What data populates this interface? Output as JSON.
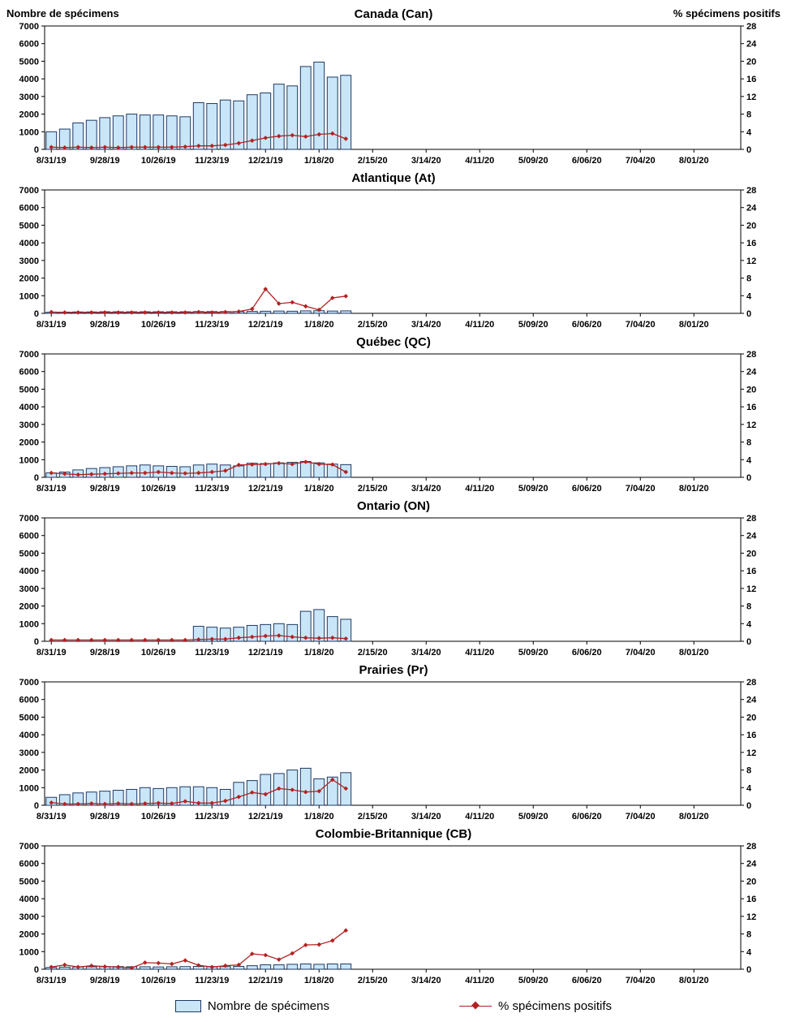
{
  "left_axis_title": "Nombre de spécimens",
  "right_axis_title": "% spécimens positifs",
  "legend": {
    "bars": "Nombre de spécimens",
    "line": "% spécimens positifs"
  },
  "colors": {
    "bar_fill": "#C9E6F8",
    "bar_border": "#1F3864",
    "line": "#B22222"
  },
  "axes": {
    "left_ticks": [
      0,
      1000,
      2000,
      3000,
      4000,
      5000,
      6000,
      7000
    ],
    "left_max": 7000,
    "right_ticks": [
      0,
      4,
      8,
      12,
      16,
      20,
      24,
      28
    ],
    "right_max": 28,
    "x_tick_labels": [
      "8/31/19",
      "9/28/19",
      "10/26/19",
      "11/23/19",
      "12/21/19",
      "1/18/20",
      "2/15/20",
      "3/14/20",
      "4/11/20",
      "5/09/20",
      "6/06/20",
      "7/04/20",
      "8/01/20"
    ],
    "x_tick_interval_weeks": 4,
    "weeks_total": 52
  },
  "chart_data": [
    {
      "type": "combo",
      "title": "Canada (Can)",
      "bars_series": "Nombre de spécimens",
      "line_series": "% spécimens positifs",
      "x_weekly_start": "8/31/19",
      "bars": [
        1000,
        1150,
        1500,
        1650,
        1800,
        1900,
        2000,
        1950,
        1950,
        1900,
        1850,
        2650,
        2600,
        2800,
        2750,
        3100,
        3200,
        3700,
        3600,
        4700,
        4950,
        4100,
        4200
      ],
      "line": [
        0.5,
        0.4,
        0.5,
        0.4,
        0.5,
        0.4,
        0.5,
        0.5,
        0.5,
        0.5,
        0.6,
        0.8,
        0.8,
        1.0,
        1.4,
        2.0,
        2.6,
        3.0,
        3.2,
        2.9,
        3.4,
        3.6,
        2.4
      ]
    },
    {
      "type": "combo",
      "title": "Atlantique (At)",
      "bars_series": "Nombre de spécimens",
      "line_series": "% spécimens positifs",
      "x_weekly_start": "8/31/19",
      "bars": [
        60,
        70,
        80,
        80,
        90,
        90,
        90,
        90,
        90,
        90,
        90,
        100,
        100,
        100,
        100,
        110,
        120,
        130,
        120,
        140,
        150,
        130,
        140
      ],
      "line": [
        0.3,
        0.2,
        0.2,
        0.2,
        0.2,
        0.2,
        0.2,
        0.2,
        0.2,
        0.2,
        0.2,
        0.3,
        0.2,
        0.3,
        0.4,
        1.0,
        5.5,
        2.2,
        2.5,
        1.6,
        0.8,
        3.5,
        3.9
      ]
    },
    {
      "type": "combo",
      "title": "Québec (QC)",
      "bars_series": "Nombre de spécimens",
      "line_series": "% spécimens positifs",
      "x_weekly_start": "8/31/19",
      "bars": [
        250,
        300,
        420,
        500,
        550,
        600,
        650,
        700,
        650,
        620,
        600,
        700,
        750,
        700,
        650,
        800,
        780,
        820,
        850,
        900,
        820,
        750,
        720
      ],
      "line": [
        1.0,
        0.8,
        0.6,
        0.7,
        0.8,
        0.9,
        1.0,
        1.0,
        1.2,
        1.0,
        0.9,
        1.0,
        1.2,
        1.5,
        2.8,
        2.9,
        3.0,
        3.2,
        3.0,
        3.5,
        3.0,
        2.9,
        1.2
      ]
    },
    {
      "type": "combo",
      "title": "Ontario (ON)",
      "bars_series": "Nombre de spécimens",
      "line_series": "% spécimens positifs",
      "x_weekly_start": "8/31/19",
      "bars": [
        0,
        0,
        0,
        0,
        0,
        0,
        0,
        0,
        0,
        0,
        0,
        850,
        800,
        750,
        800,
        900,
        950,
        1000,
        950,
        1700,
        1800,
        1400,
        1250
      ],
      "line": [
        0.3,
        0.3,
        0.3,
        0.3,
        0.3,
        0.3,
        0.3,
        0.3,
        0.3,
        0.3,
        0.3,
        0.4,
        0.5,
        0.5,
        0.8,
        1.0,
        1.2,
        1.3,
        1.0,
        0.8,
        0.7,
        0.8,
        0.6
      ]
    },
    {
      "type": "combo",
      "title": "Prairies (Pr)",
      "bars_series": "Nombre de spécimens",
      "line_series": "% spécimens positifs",
      "x_weekly_start": "8/31/19",
      "bars": [
        450,
        600,
        700,
        750,
        800,
        850,
        900,
        1000,
        950,
        1000,
        1050,
        1050,
        1000,
        900,
        1300,
        1400,
        1750,
        1800,
        2000,
        2100,
        1500,
        1600,
        1850
      ],
      "line": [
        0.6,
        0.3,
        0.3,
        0.4,
        0.3,
        0.4,
        0.3,
        0.4,
        0.5,
        0.4,
        0.9,
        0.5,
        0.5,
        1.0,
        1.9,
        2.9,
        2.5,
        3.8,
        3.5,
        3.0,
        3.2,
        5.8,
        3.8
      ]
    },
    {
      "type": "combo",
      "title": "Colombie-Britannique (CB)",
      "bars_series": "Nombre de spécimens",
      "line_series": "% spécimens positifs",
      "x_weekly_start": "8/31/19",
      "bars": [
        100,
        120,
        130,
        140,
        150,
        150,
        140,
        140,
        130,
        140,
        150,
        160,
        150,
        150,
        160,
        200,
        250,
        250,
        280,
        300,
        280,
        300,
        300
      ],
      "line": [
        0.5,
        1.0,
        0.5,
        0.8,
        0.6,
        0.5,
        0.3,
        1.5,
        1.4,
        1.2,
        2.0,
        0.9,
        0.5,
        0.8,
        1.0,
        3.5,
        3.2,
        2.2,
        3.6,
        5.5,
        5.6,
        6.5,
        8.8
      ]
    }
  ]
}
